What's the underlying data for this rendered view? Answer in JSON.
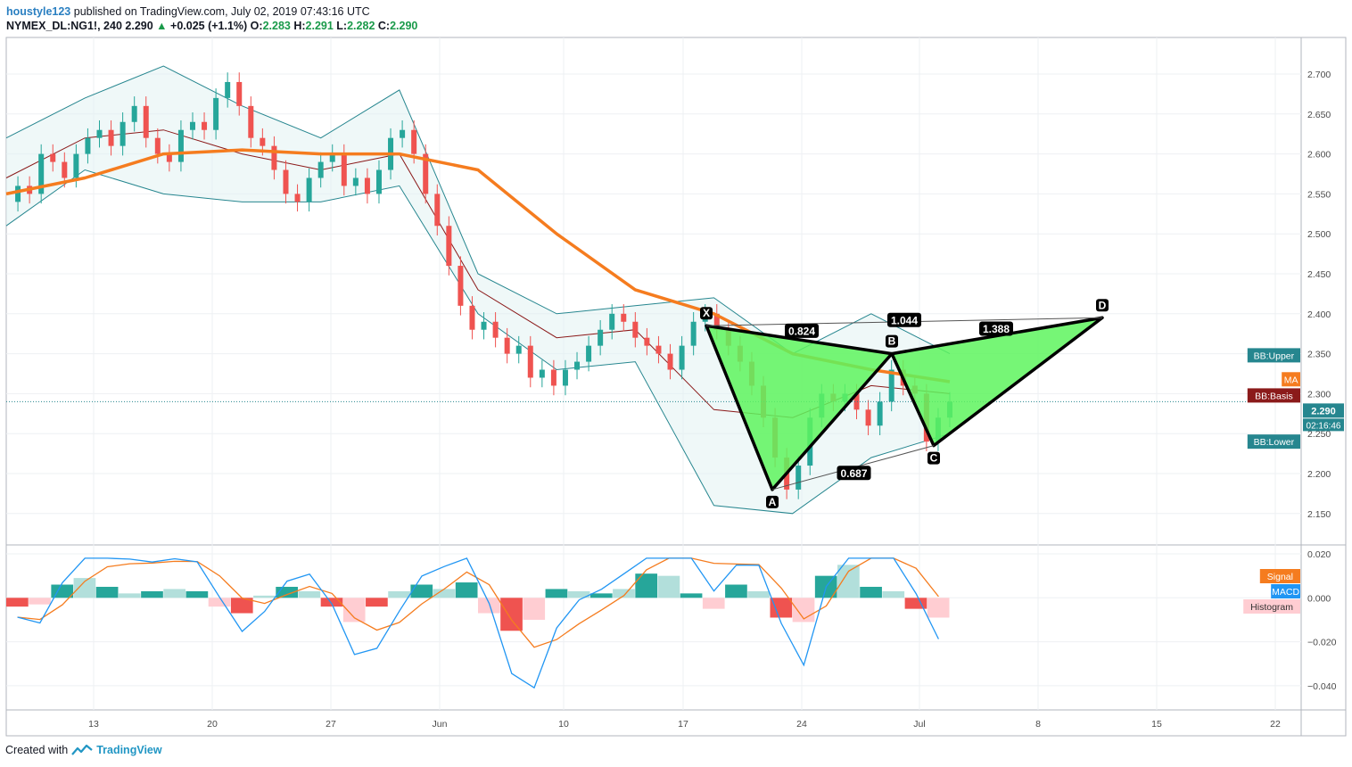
{
  "header": {
    "author": "houstyle123",
    "published": "published on TradingView.com, July 02, 2019 07:43:16 UTC",
    "symbol": "NYMEX_DL:NG1!, 240",
    "last": "2.290",
    "arrow": "▲",
    "change": "+0.025 (+1.1%)",
    "o_label": "O:",
    "o": "2.283",
    "h_label": "H:",
    "h": "2.291",
    "l_label": "L:",
    "l": "2.282",
    "c_label": "C:",
    "c": "2.290"
  },
  "footer": {
    "text": "Created with",
    "brand": "TradingView",
    "logo_icon": "tradingview-logo-icon"
  },
  "colors": {
    "up": "#26a69a",
    "down": "#ef5350",
    "ma": "#f57c1f",
    "band": "#26868f",
    "basis": "#8b1a1a",
    "pattern": "#5ef55e",
    "macd": "#2196f3",
    "signal": "#f57c1f"
  },
  "chart_data": [
    {
      "type": "candlestick",
      "title": "",
      "x_tick_labels": [
        "13",
        "20",
        "27",
        "Jun",
        "10",
        "17",
        "24",
        "Jul",
        "8",
        "15",
        "22"
      ],
      "y_tick_labels": [
        "2.700",
        "2.650",
        "2.600",
        "2.550",
        "2.500",
        "2.450",
        "2.400",
        "2.350",
        "2.300",
        "2.250",
        "2.200",
        "2.150"
      ],
      "ylim": [
        2.12,
        2.73
      ],
      "last_price": "2.290",
      "countdown": "02:16:46",
      "close_series": [
        2.54,
        2.56,
        2.55,
        2.6,
        2.59,
        2.57,
        2.6,
        2.62,
        2.63,
        2.61,
        2.64,
        2.66,
        2.62,
        2.6,
        2.59,
        2.63,
        2.64,
        2.63,
        2.67,
        2.69,
        2.66,
        2.62,
        2.61,
        2.58,
        2.55,
        2.54,
        2.57,
        2.59,
        2.6,
        2.56,
        2.57,
        2.55,
        2.58,
        2.62,
        2.63,
        2.6,
        2.55,
        2.51,
        2.46,
        2.41,
        2.38,
        2.39,
        2.37,
        2.35,
        2.36,
        2.32,
        2.33,
        2.31,
        2.33,
        2.34,
        2.36,
        2.38,
        2.4,
        2.39,
        2.37,
        2.36,
        2.35,
        2.33,
        2.36,
        2.39,
        2.4,
        2.38,
        2.36,
        2.34,
        2.31,
        2.27,
        2.22,
        2.18,
        2.21,
        2.27,
        2.3,
        2.29,
        2.3,
        2.28,
        2.26,
        2.29,
        2.33,
        2.31,
        2.3,
        2.24,
        2.27,
        2.29
      ],
      "indicators": [
        {
          "name": "MA",
          "values": [
            2.55,
            2.57,
            2.6,
            2.605,
            2.6,
            2.6,
            2.58,
            2.5,
            2.43,
            2.4,
            2.35,
            2.33,
            2.315
          ]
        },
        {
          "name": "BB:Upper",
          "values": [
            2.62,
            2.67,
            2.71,
            2.66,
            2.62,
            2.68,
            2.45,
            2.4,
            2.41,
            2.42,
            2.35,
            2.4,
            2.35
          ]
        },
        {
          "name": "BB:Basis",
          "values": [
            2.57,
            2.62,
            2.63,
            2.6,
            2.58,
            2.6,
            2.43,
            2.37,
            2.38,
            2.28,
            2.27,
            2.31,
            2.3
          ]
        },
        {
          "name": "BB:Lower",
          "values": [
            2.51,
            2.58,
            2.55,
            2.54,
            2.54,
            2.56,
            2.4,
            2.33,
            2.34,
            2.16,
            2.15,
            2.22,
            2.25
          ]
        }
      ],
      "tags": [
        {
          "label": "BB:Upper",
          "value": 2.348,
          "color": "#26868f"
        },
        {
          "label": "MA",
          "value": 2.318,
          "color": "#f57c1f"
        },
        {
          "label": "BB:Basis",
          "value": 2.3,
          "color": "#8b1a1a"
        },
        {
          "label": "BB:Lower",
          "value": 2.24,
          "color": "#26868f"
        }
      ],
      "pattern": {
        "points": [
          {
            "name": "X",
            "value": 2.385
          },
          {
            "name": "A",
            "value": 2.18
          },
          {
            "name": "B",
            "value": 2.35
          },
          {
            "name": "C",
            "value": 2.235
          },
          {
            "name": "D",
            "value": 2.395
          }
        ],
        "ratios": [
          "0.824",
          "1.044",
          "1.388",
          "0.687"
        ]
      }
    },
    {
      "type": "macd",
      "title": "",
      "y_tick_labels": [
        "0.020",
        "0.000",
        "−0.020",
        "−0.040"
      ],
      "ylim": [
        -0.051,
        0.021
      ],
      "series": [
        {
          "name": "Signal",
          "color": "#f57c1f"
        },
        {
          "name": "MACD",
          "color": "#2196f3"
        },
        {
          "name": "Histogram",
          "color": "#ffcdd2"
        }
      ],
      "histogram": [
        -0.004,
        -0.003,
        0.006,
        0.009,
        0.005,
        0.002,
        0.003,
        0.004,
        0.003,
        -0.004,
        -0.007,
        0.001,
        0.005,
        0.003,
        -0.004,
        -0.011,
        -0.004,
        0.003,
        0.006,
        0.004,
        0.007,
        -0.007,
        -0.015,
        -0.01,
        0.004,
        0.003,
        0.002,
        0.004,
        0.011,
        0.01,
        0.002,
        -0.005,
        0.006,
        0.003,
        -0.009,
        -0.011,
        0.01,
        0.015,
        0.005,
        0.003,
        -0.005,
        -0.009
      ]
    }
  ]
}
